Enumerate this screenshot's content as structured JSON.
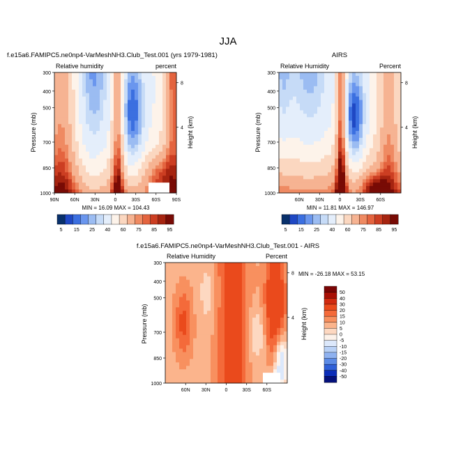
{
  "figure": {
    "title": "JJA"
  },
  "chart_data": [
    {
      "type": "heatmap",
      "title": "f.e15a6.FAMIPC5.ne0np4-VarMeshNH3.Club_Test.001 (yrs 1979-1981)",
      "left_label": "Relative humidity",
      "right_label": "percent",
      "ylabel": "Pressure (mb)",
      "ylabel_right": "Height (km)",
      "x_ticks": [
        "90N",
        "60N",
        "30N",
        "0",
        "30S",
        "60S",
        "90S"
      ],
      "y_ticks": [
        "300",
        "400",
        "500",
        "700",
        "850",
        "1000"
      ],
      "height_ticks": [
        "8",
        "4"
      ],
      "stats": "MIN =  16.09  MAX = 104.43",
      "colorbar_labels": [
        "5",
        "15",
        "25",
        "40",
        "60",
        "75",
        "85",
        "95"
      ]
    },
    {
      "type": "heatmap",
      "title": "AIRS",
      "left_label": "Relative Humidity",
      "right_label": "Percent",
      "ylabel": "Pressure (mb)",
      "ylabel_right": "Height (km)",
      "x_ticks": [
        "60N",
        "30N",
        "0",
        "30S",
        "60S"
      ],
      "y_ticks": [
        "300",
        "400",
        "500",
        "700",
        "850",
        "1000"
      ],
      "height_ticks": [
        "8",
        "4"
      ],
      "stats": "MIN =  11.81  MAX = 146.97",
      "colorbar_labels": [
        "5",
        "15",
        "25",
        "40",
        "60",
        "75",
        "85",
        "95"
      ]
    },
    {
      "type": "heatmap",
      "title": "f.e15a6.FAMIPC5.ne0np4-VarMeshNH3.Club_Test.001 - AIRS",
      "left_label": "Relative Humidity",
      "right_label": "Percent",
      "ylabel": "Pressure (mb)",
      "ylabel_right": "Height (km)",
      "x_ticks": [
        "60N",
        "30N",
        "0",
        "30S",
        "60S"
      ],
      "y_ticks": [
        "300",
        "400",
        "500",
        "700",
        "850",
        "1000"
      ],
      "height_ticks": [
        "8",
        "4"
      ],
      "stats": "MIN = -26.18  MAX =  53.15",
      "colorbar_labels": [
        "50",
        "40",
        "30",
        "20",
        "15",
        "10",
        "5",
        "0",
        "-5",
        "-10",
        "-15",
        "-20",
        "-30",
        "-40",
        "-50"
      ]
    }
  ],
  "colors": {
    "rh_palette": [
      "#08306b",
      "#1f48c4",
      "#3b6fe0",
      "#6a96ee",
      "#9bbcf2",
      "#c6dbf7",
      "#e4eefb",
      "#fdf3ea",
      "#fbd7c0",
      "#f6b392",
      "#ef8a62",
      "#e4643f",
      "#cc3e22",
      "#a62410",
      "#780b05"
    ],
    "diff_palette": [
      "#7a0404",
      "#a80f05",
      "#d12a10",
      "#ea4a1c",
      "#f46a3a",
      "#f8905f",
      "#fbb48c",
      "#fdd8c1",
      "#fdf2ea",
      "#dce8fb",
      "#b9d1f6",
      "#8fb2f0",
      "#5c8be6",
      "#2f60d8",
      "#0b2db8",
      "#04107a"
    ]
  }
}
